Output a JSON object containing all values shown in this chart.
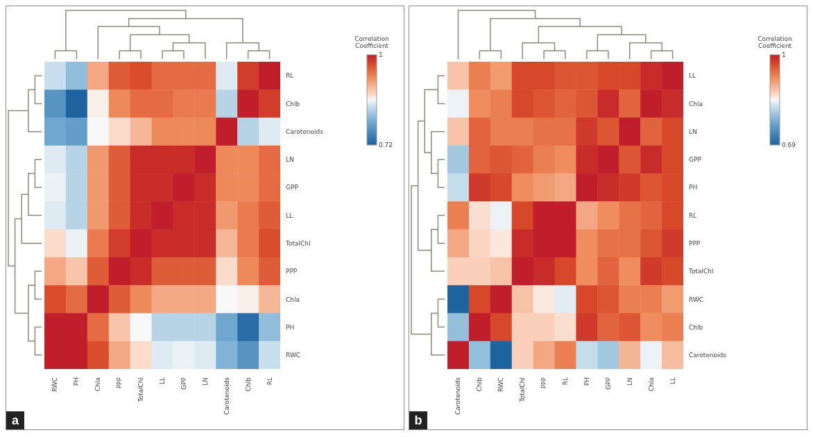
{
  "chart_data": [
    {
      "type": "heatmap",
      "title": "a",
      "clabel": "Correlation Coefficient",
      "clim": [
        0.72,
        1
      ],
      "cticks": [
        0.72,
        1
      ],
      "categories": [
        "RWC",
        "PH",
        "Chla",
        "PPP",
        "TotalChl",
        "LL",
        "GPP",
        "LN",
        "Carotenoids",
        "Chlb",
        "RL"
      ],
      "y_categories": [
        "RL",
        "Chlb",
        "Carotenoids",
        "LN",
        "GPP",
        "LL",
        "TotalChl",
        "PPP",
        "Chla",
        "PH",
        "RWC"
      ],
      "cells": [
        [
          0.84,
          0.81,
          0.91,
          0.96,
          0.97,
          0.95,
          0.95,
          0.95,
          0.85,
          0.98,
          1
        ],
        [
          0.77,
          0.72,
          0.865,
          0.93,
          0.95,
          0.95,
          0.94,
          0.94,
          0.83,
          1,
          0.98
        ],
        [
          0.79,
          0.78,
          0.86,
          0.875,
          0.9,
          0.93,
          0.93,
          0.93,
          1,
          0.83,
          0.85
        ],
        [
          0.85,
          0.83,
          0.92,
          0.96,
          0.99,
          0.99,
          0.99,
          1,
          0.93,
          0.93,
          0.95
        ],
        [
          0.855,
          0.83,
          0.92,
          0.96,
          0.99,
          0.99,
          1,
          0.99,
          0.93,
          0.93,
          0.95
        ],
        [
          0.85,
          0.83,
          0.92,
          0.96,
          0.99,
          1,
          0.99,
          0.99,
          0.92,
          0.94,
          0.96
        ],
        [
          0.875,
          0.855,
          0.94,
          0.98,
          1,
          0.99,
          0.99,
          0.99,
          0.9,
          0.94,
          0.97
        ],
        [
          0.91,
          0.89,
          0.96,
          1,
          0.99,
          0.96,
          0.96,
          0.96,
          0.875,
          0.93,
          0.96
        ],
        [
          0.97,
          0.95,
          1,
          0.96,
          0.93,
          0.91,
          0.91,
          0.91,
          0.86,
          0.865,
          0.9
        ],
        [
          1,
          1,
          0.95,
          0.89,
          0.86,
          0.83,
          0.83,
          0.83,
          0.79,
          0.73,
          0.81
        ],
        [
          1,
          1,
          0.97,
          0.91,
          0.875,
          0.85,
          0.855,
          0.85,
          0.8,
          0.77,
          0.84
        ]
      ]
    },
    {
      "type": "heatmap",
      "title": "b",
      "clabel": "Correlation Coefficient",
      "clim": [
        0.69,
        1
      ],
      "cticks": [
        0.69,
        1
      ],
      "categories": [
        "Carotenoids",
        "Chlb",
        "RWC",
        "TotalChl",
        "PPP",
        "RL",
        "PH",
        "GPP",
        "LN",
        "Chla",
        "LL"
      ],
      "y_categories": [
        "LL",
        "Chla",
        "LN",
        "GPP",
        "PH",
        "RL",
        "PPP",
        "TotalChl",
        "RWC",
        "Chlb",
        "Carotenoids"
      ],
      "cells": [
        [
          0.88,
          0.93,
          0.91,
          0.97,
          0.97,
          0.96,
          0.96,
          0.97,
          0.97,
          0.99,
          1
        ],
        [
          0.84,
          0.92,
          0.93,
          0.97,
          0.96,
          0.95,
          0.96,
          0.99,
          0.95,
          1,
          0.99
        ],
        [
          0.88,
          0.95,
          0.93,
          0.93,
          0.94,
          0.94,
          0.98,
          0.96,
          1,
          0.95,
          0.97
        ],
        [
          0.8,
          0.95,
          0.96,
          0.95,
          0.93,
          0.92,
          0.99,
          1,
          0.96,
          0.99,
          0.97
        ],
        [
          0.82,
          0.98,
          0.97,
          0.92,
          0.91,
          0.9,
          1,
          0.99,
          0.98,
          0.96,
          0.97
        ],
        [
          0.93,
          0.86,
          0.84,
          0.97,
          1,
          1,
          0.9,
          0.92,
          0.94,
          0.95,
          0.97
        ],
        [
          0.9,
          0.865,
          0.855,
          0.99,
          1,
          1,
          0.92,
          0.94,
          0.94,
          0.96,
          0.98
        ],
        [
          0.87,
          0.87,
          0.88,
          1,
          0.99,
          0.97,
          0.92,
          0.95,
          0.92,
          0.98,
          0.97
        ],
        [
          0.69,
          0.97,
          1,
          0.88,
          0.855,
          0.835,
          0.97,
          0.96,
          0.93,
          0.93,
          0.91
        ],
        [
          0.79,
          1,
          0.97,
          0.87,
          0.87,
          0.86,
          0.98,
          0.95,
          0.96,
          0.92,
          0.93
        ],
        [
          1,
          0.79,
          0.69,
          0.87,
          0.9,
          0.93,
          0.82,
          0.8,
          0.89,
          0.84,
          0.885
        ]
      ]
    }
  ]
}
